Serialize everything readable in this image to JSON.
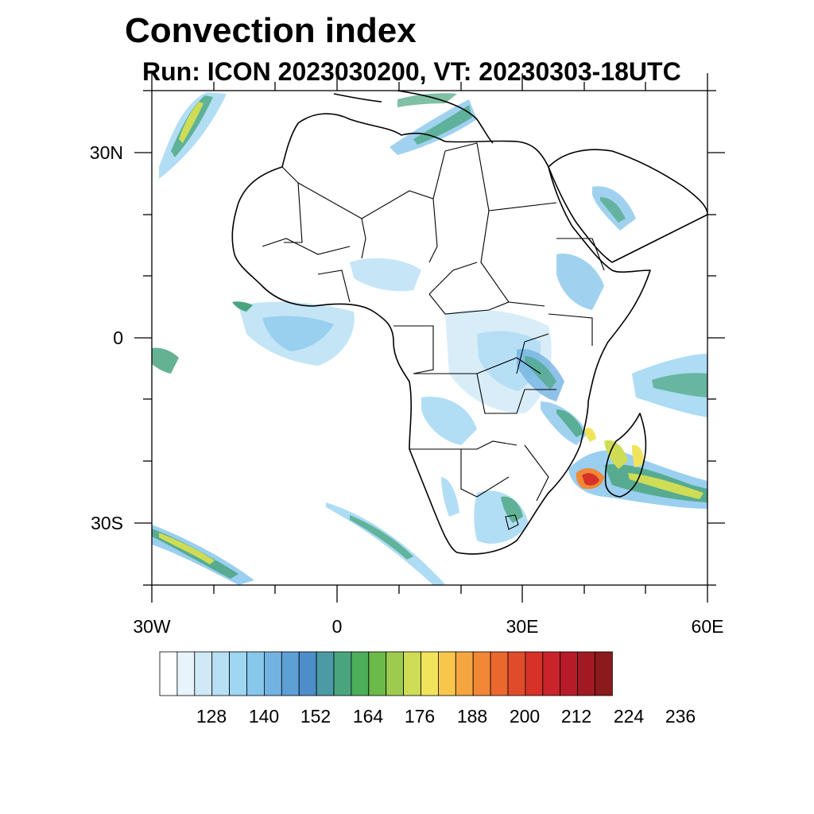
{
  "title": "Convection index",
  "subtitle": "Run: ICON 2023030200,  VT: 20230303-18UTC",
  "map": {
    "lat_ticks": [
      "30N",
      "0",
      "30S"
    ],
    "lon_ticks": [
      "30W",
      "0",
      "30E",
      "60E"
    ]
  },
  "colorbar": {
    "colors": [
      "#ffffff",
      "#e8f4fb",
      "#cfe9f7",
      "#b8e0f5",
      "#9fd6f2",
      "#88c7ec",
      "#73b3e2",
      "#5e9fd6",
      "#4d8dc9",
      "#4c9aa5",
      "#4aa57f",
      "#4cae58",
      "#6cba4a",
      "#9ccb4f",
      "#cfdc56",
      "#f1e45c",
      "#f7c74c",
      "#f6a641",
      "#f28737",
      "#ea682e",
      "#e04c2a",
      "#d63228",
      "#c9232b",
      "#b81b28",
      "#a11a23",
      "#8b1a1c"
    ],
    "labels": [
      "128",
      "140",
      "152",
      "164",
      "176",
      "188",
      "200",
      "212",
      "224",
      "236"
    ]
  }
}
